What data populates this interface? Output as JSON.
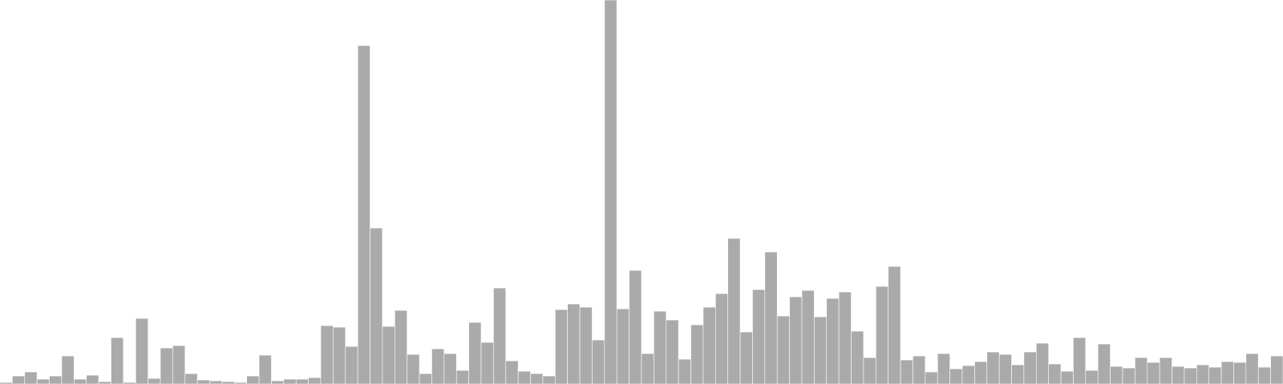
{
  "chart_data": {
    "type": "bar",
    "title": "",
    "xlabel": "",
    "ylabel": "",
    "ylim": [
      0,
      480
    ],
    "grid": false,
    "legend": "none",
    "colors": {
      "bar_fill": "#aaaaaa",
      "bar_stroke": "#ffffff",
      "background": "#ffffff"
    },
    "values": [
      2,
      10,
      15,
      6,
      10,
      35,
      6,
      11,
      3,
      58,
      2,
      82,
      7,
      45,
      48,
      13,
      5,
      4,
      3,
      2,
      10,
      36,
      4,
      6,
      6,
      8,
      73,
      71,
      47,
      423,
      195,
      72,
      92,
      37,
      13,
      44,
      38,
      17,
      77,
      52,
      120,
      29,
      16,
      13,
      10,
      93,
      100,
      96,
      55,
      480,
      94,
      142,
      38,
      91,
      80,
      31,
      74,
      96,
      113,
      182,
      65,
      118,
      165,
      85,
      109,
      117,
      84,
      107,
      115,
      66,
      33,
      122,
      147,
      30,
      35,
      15,
      38,
      19,
      23,
      28,
      40,
      37,
      24,
      40,
      51,
      25,
      16,
      58,
      17,
      50,
      22,
      20,
      33,
      27,
      33,
      22,
      20,
      24,
      21,
      28,
      27,
      38,
      21,
      35
    ]
  }
}
